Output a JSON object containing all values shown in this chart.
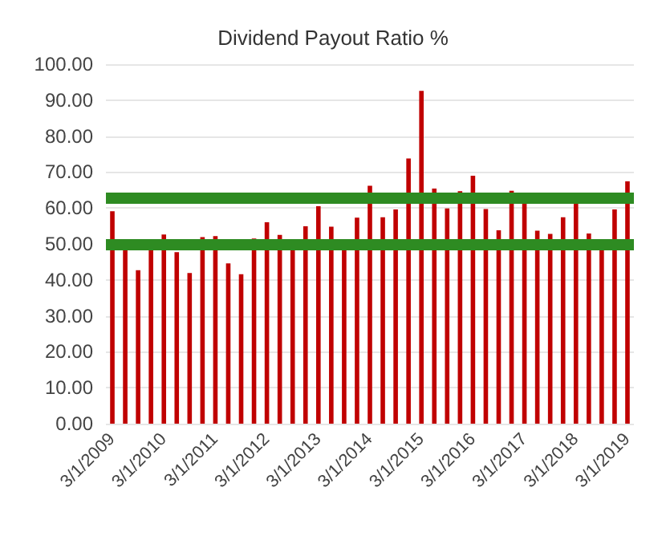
{
  "chart_data": {
    "type": "bar",
    "title": "Dividend Payout Ratio %",
    "categories": [
      "3/1/2009",
      null,
      null,
      null,
      "3/1/2010",
      null,
      null,
      null,
      "3/1/2011",
      null,
      null,
      null,
      "3/1/2012",
      null,
      null,
      null,
      "3/1/2013",
      null,
      null,
      null,
      "3/1/2014",
      null,
      null,
      null,
      "3/1/2015",
      null,
      null,
      null,
      "3/1/2016",
      null,
      null,
      null,
      "3/1/2017",
      null,
      null,
      null,
      "3/1/2018",
      null,
      null,
      null,
      "3/1/2019"
    ],
    "series": [
      {
        "color": "#c00000",
        "values": [
          59.1,
          49,
          42.7,
          49,
          52.6,
          47.7,
          41.9,
          51.9,
          52.2,
          44.6,
          41.6,
          51.5,
          56,
          52.5,
          48.3,
          54.9,
          60.5,
          54.8,
          48.3,
          57.3,
          66.2,
          57.4,
          59.6,
          73.8,
          92.6,
          65.4,
          59.9,
          64.7,
          69,
          59.7,
          53.8,
          64.8,
          61.7,
          53.7,
          52.8,
          57.4,
          61.5,
          52.9,
          48.3,
          59.6,
          67.4
        ]
      }
    ],
    "ylim": [
      0,
      100
    ],
    "yticks": [
      {
        "value": 0,
        "label": "0.00"
      },
      {
        "value": 10,
        "label": "10.00"
      },
      {
        "value": 20,
        "label": "20.00"
      },
      {
        "value": 30,
        "label": "30.00"
      },
      {
        "value": 40,
        "label": "40.00"
      },
      {
        "value": 50,
        "label": "50.00"
      },
      {
        "value": 60,
        "label": "60.00"
      },
      {
        "value": 70,
        "label": "70.00"
      },
      {
        "value": 80,
        "label": "80.00"
      },
      {
        "value": 90,
        "label": "90.00"
      },
      {
        "value": 100,
        "label": "100.00"
      }
    ],
    "grid": "y",
    "ref_lines": [
      {
        "axis": "y",
        "value": 63,
        "color": "#2e8b22"
      },
      {
        "axis": "y",
        "value": 50,
        "color": "#2e8b22"
      }
    ]
  }
}
